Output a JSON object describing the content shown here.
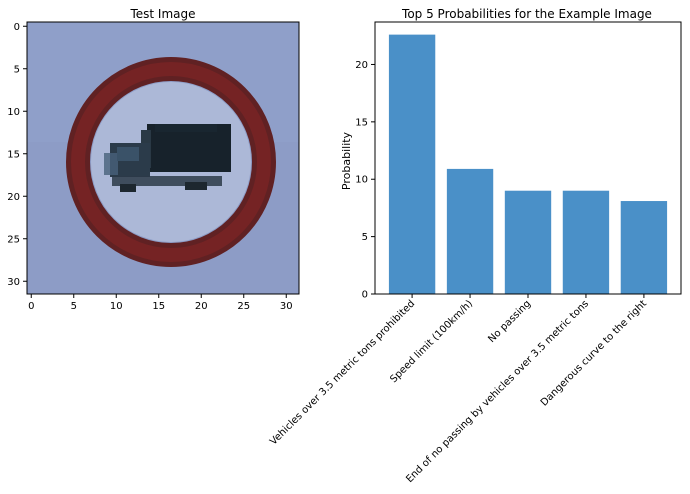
{
  "chart_data": [
    {
      "type": "image",
      "title": "Test Image",
      "x_ticks": [
        "0",
        "5",
        "10",
        "15",
        "20",
        "25",
        "30"
      ],
      "y_ticks": [
        "0",
        "5",
        "10",
        "15",
        "20",
        "25",
        "30"
      ],
      "xlim": [
        -0.5,
        31.5
      ],
      "ylim": [
        31.5,
        -0.5
      ],
      "content": "traffic sign: vehicles over 3.5 metric tons prohibited",
      "colors": {
        "background": "#8d9cc6",
        "ring": "#6e1d1d",
        "truck": "#1e2a33"
      }
    },
    {
      "type": "bar",
      "title": "Top 5 Probabilities for the Example Image",
      "xlabel": "",
      "ylabel": "Probability",
      "categories": [
        "Vehicles over 3.5 metric tons prohibited",
        "Speed limit (100km/h)",
        "No passing",
        "End of no passing by vehicles over 3.5 metric tons",
        "Dangerous curve to the right"
      ],
      "values": [
        22.6,
        10.9,
        9.0,
        9.0,
        8.1
      ],
      "ylim": [
        0,
        23.7
      ],
      "y_ticks": [
        0,
        5,
        10,
        15,
        20
      ],
      "bar_color": "#4a90c8",
      "grid": false,
      "legend": "none"
    }
  ]
}
